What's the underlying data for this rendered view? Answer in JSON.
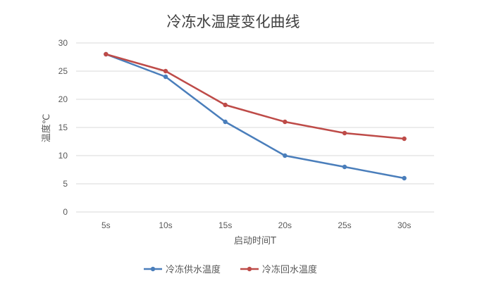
{
  "chart_data": {
    "type": "line",
    "title": "冷冻水温度变化曲线",
    "xlabel": "启动时间T",
    "ylabel": "温度℃",
    "categories": [
      "5s",
      "10s",
      "15s",
      "20s",
      "25s",
      "30s"
    ],
    "ylim": [
      0,
      30
    ],
    "yticks": [
      "0",
      "5",
      "10",
      "15",
      "20",
      "25",
      "30"
    ],
    "grid": true,
    "legend_position": "bottom",
    "series": [
      {
        "name": "冷冻供水温度",
        "color": "#4a7ebb",
        "values": [
          28,
          24,
          16,
          10,
          8,
          6
        ]
      },
      {
        "name": "冷冻回水温度",
        "color": "#be4b48",
        "values": [
          28,
          25,
          19,
          16,
          14,
          13
        ]
      }
    ]
  }
}
